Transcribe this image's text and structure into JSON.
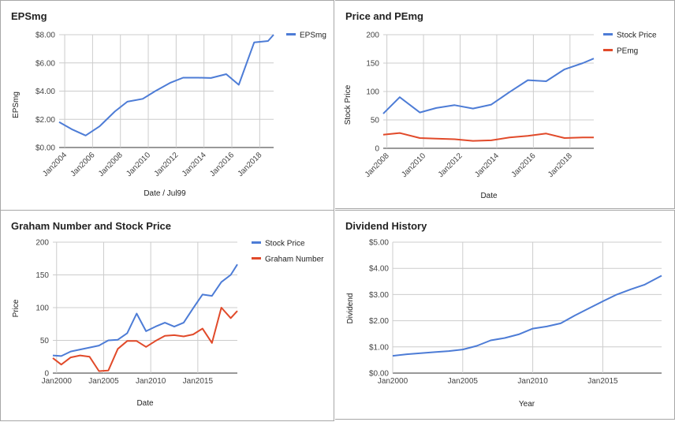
{
  "colors": {
    "blue": "#4d7cd6",
    "red": "#e14a2a"
  },
  "chart_data": [
    {
      "type": "line",
      "title": "EPSmg",
      "xlabel": "Date / Jul99",
      "ylabel": "EPSmg",
      "xlim": [
        2003.6,
        2019.0
      ],
      "ylim": [
        0,
        8
      ],
      "yticks": [
        0,
        2,
        4,
        6,
        8
      ],
      "ytick_labels": [
        "$0.00",
        "$2.00",
        "$4.00",
        "$6.00",
        "$8.00"
      ],
      "xticks": [
        2004,
        2006,
        2008,
        2010,
        2012,
        2014,
        2016,
        2018
      ],
      "xtick_labels": [
        "Jan2004",
        "Jan2006",
        "Jan2008",
        "Jan2010",
        "Jan2012",
        "Jan2014",
        "Jan2016",
        "Jan2018"
      ],
      "legend": "top-right",
      "series": [
        {
          "name": "EPSmg",
          "color": "#4d7cd6",
          "x": [
            2003.6,
            2004.5,
            2005.5,
            2006.5,
            2007.6,
            2008.5,
            2009.6,
            2010.5,
            2011.6,
            2012.5,
            2013.6,
            2014.5,
            2015.6,
            2016.5,
            2017.6,
            2018.6,
            2019.0
          ],
          "y": [
            1.8,
            1.3,
            0.85,
            1.5,
            2.55,
            3.25,
            3.45,
            4.0,
            4.6,
            4.95,
            4.95,
            4.93,
            5.2,
            4.45,
            7.45,
            7.55,
            8.0
          ]
        }
      ]
    },
    {
      "type": "line",
      "title": "Price and PEmg",
      "xlabel": "Date",
      "ylabel": "Stock Price",
      "xlim": [
        2007.8,
        2019.3
      ],
      "ylim": [
        0,
        200
      ],
      "yticks": [
        0,
        50,
        100,
        150,
        200
      ],
      "ytick_labels": [
        "0",
        "50",
        "100",
        "150",
        "200"
      ],
      "xticks": [
        2008,
        2010,
        2012,
        2014,
        2016,
        2018
      ],
      "xtick_labels": [
        "Jan2008",
        "Jan2010",
        "Jan2012",
        "Jan2014",
        "Jan2016",
        "Jan2018"
      ],
      "legend": "top-right",
      "series": [
        {
          "name": "Stock Price",
          "color": "#4d7cd6",
          "x": [
            2007.8,
            2008.7,
            2009.8,
            2010.7,
            2011.7,
            2012.7,
            2013.7,
            2014.7,
            2015.7,
            2016.7,
            2017.7,
            2018.7,
            2019.3
          ],
          "y": [
            61,
            90,
            63,
            71,
            76,
            70,
            77,
            99,
            120,
            118,
            139,
            150,
            158
          ]
        },
        {
          "name": "PEmg",
          "color": "#e14a2a",
          "x": [
            2007.8,
            2008.7,
            2009.8,
            2010.7,
            2011.7,
            2012.7,
            2013.7,
            2014.7,
            2015.7,
            2016.7,
            2017.7,
            2018.7,
            2019.3
          ],
          "y": [
            24,
            27,
            18,
            17,
            16,
            13,
            14,
            19,
            22,
            26,
            18,
            19,
            19
          ]
        }
      ]
    },
    {
      "type": "line",
      "title": "Graham Number and Stock Price",
      "xlabel": "Date",
      "ylabel": "Price",
      "xlim": [
        1999.6,
        2019.2
      ],
      "ylim": [
        0,
        200
      ],
      "yticks": [
        0,
        50,
        100,
        150,
        200
      ],
      "ytick_labels": [
        "0",
        "50",
        "100",
        "150",
        "200"
      ],
      "xticks": [
        2000,
        2005,
        2010,
        2015
      ],
      "xtick_labels": [
        "Jan2000",
        "Jan2005",
        "Jan2010",
        "Jan2015"
      ],
      "legend": "top-right",
      "series": [
        {
          "name": "Stock Price",
          "color": "#4d7cd6",
          "x": [
            1999.6,
            2000.5,
            2001.5,
            2002.5,
            2003.5,
            2004.5,
            2005.5,
            2006.5,
            2007.5,
            2008.5,
            2009.5,
            2010.5,
            2011.5,
            2012.5,
            2013.5,
            2014.5,
            2015.5,
            2016.5,
            2017.5,
            2018.5,
            2019.2
          ],
          "y": [
            27,
            26,
            33,
            36,
            39,
            42,
            50,
            51,
            61,
            91,
            64,
            71,
            77,
            71,
            77,
            99,
            120,
            118,
            139,
            150,
            166
          ]
        },
        {
          "name": "Graham Number",
          "color": "#e14a2a",
          "x": [
            1999.6,
            2000.5,
            2001.5,
            2002.5,
            2003.5,
            2004.5,
            2005.5,
            2006.5,
            2007.5,
            2008.5,
            2009.5,
            2010.5,
            2011.5,
            2012.5,
            2013.5,
            2014.5,
            2015.5,
            2016.5,
            2017.5,
            2018.5,
            2019.2
          ],
          "y": [
            23,
            13,
            24,
            27,
            25,
            3,
            4,
            37,
            49,
            49,
            40,
            49,
            57,
            58,
            56,
            59,
            68,
            46,
            100,
            84,
            95
          ]
        }
      ]
    },
    {
      "type": "line",
      "title": "Dividend History",
      "xlabel": "Year",
      "ylabel": "Dividend",
      "xlim": [
        2000,
        2019.2
      ],
      "ylim": [
        0,
        5
      ],
      "yticks": [
        0,
        1,
        2,
        3,
        4,
        5
      ],
      "ytick_labels": [
        "$0.00",
        "$1.00",
        "$2.00",
        "$3.00",
        "$4.00",
        "$5.00"
      ],
      "xticks": [
        2000,
        2005,
        2010,
        2015
      ],
      "xtick_labels": [
        "Jan2000",
        "Jan2005",
        "Jan2010",
        "Jan2015"
      ],
      "legend": "none",
      "series": [
        {
          "name": "",
          "color": "#4d7cd6",
          "x": [
            2000,
            2001,
            2002,
            2003,
            2004,
            2005,
            2006,
            2007,
            2008,
            2009,
            2010,
            2011,
            2012,
            2013,
            2014,
            2015,
            2016,
            2017,
            2018,
            2019.2
          ],
          "y": [
            0.66,
            0.72,
            0.76,
            0.8,
            0.84,
            0.9,
            1.04,
            1.25,
            1.34,
            1.48,
            1.7,
            1.78,
            1.9,
            2.2,
            2.47,
            2.74,
            3.0,
            3.2,
            3.38,
            3.72
          ]
        }
      ]
    }
  ]
}
